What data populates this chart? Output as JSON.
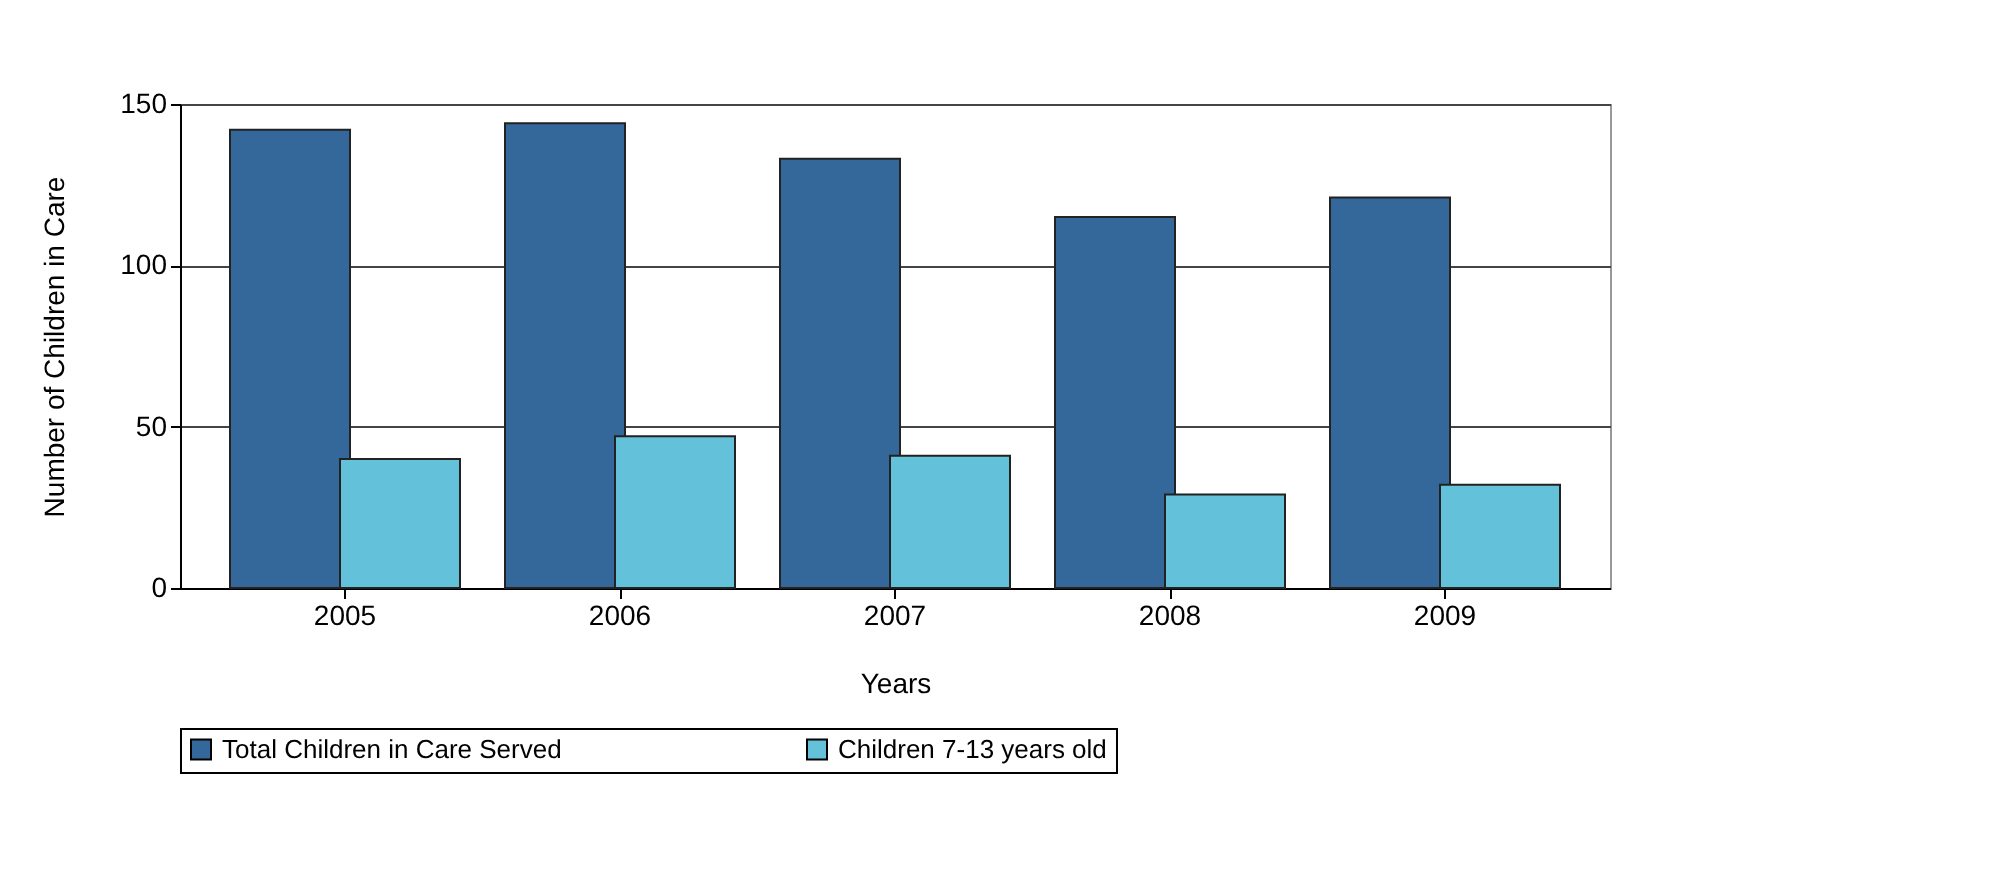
{
  "chart_data": {
    "type": "bar",
    "xlabel": "Years",
    "ylabel": "Number of Children in Care",
    "categories": [
      "2005",
      "2006",
      "2007",
      "2008",
      "2009"
    ],
    "series": [
      {
        "name": "Total Children in Care Served",
        "color": "#34679a",
        "values": [
          142,
          144,
          133,
          115,
          121
        ]
      },
      {
        "name": "Children 7-13 years old",
        "color": "#63c1d9",
        "values": [
          40,
          47,
          41,
          29,
          32
        ]
      }
    ],
    "ylim": [
      0,
      150
    ],
    "yticks": [
      0,
      50,
      100,
      150
    ],
    "grid": "y",
    "legend": "bottom"
  }
}
